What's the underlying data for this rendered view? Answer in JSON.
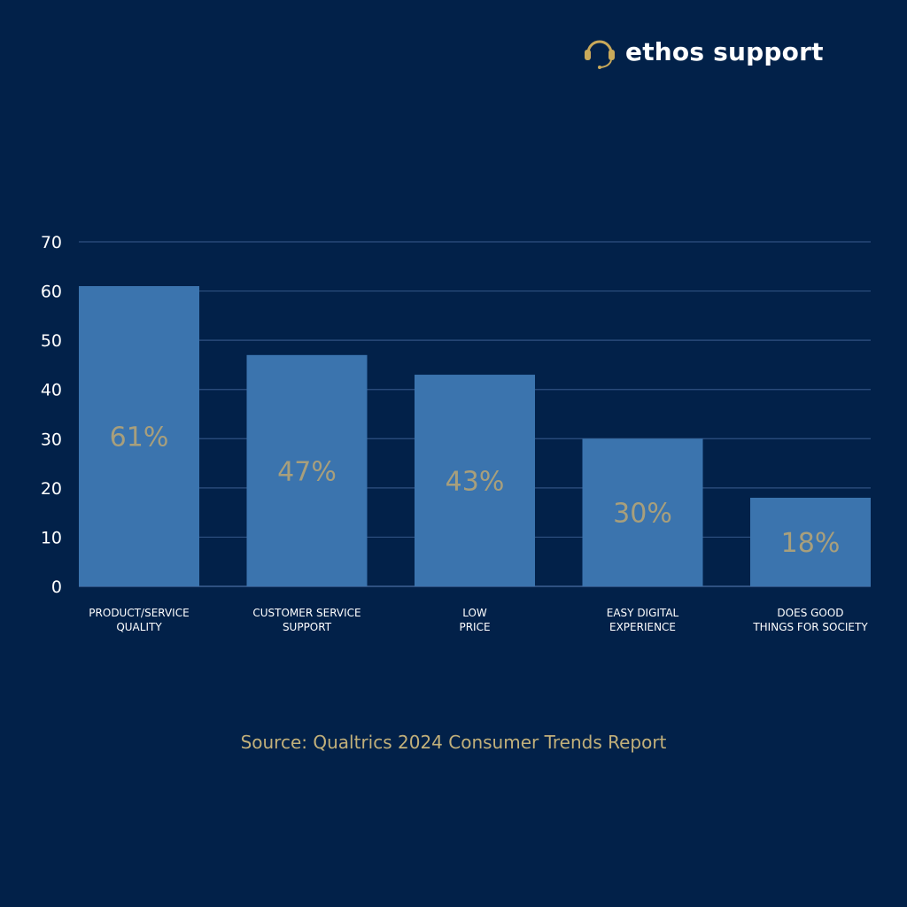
{
  "brand": {
    "name": "ethos support",
    "icon": "headset-icon",
    "accent": "#c9a95a"
  },
  "source": "Source: Qualtrics 2024 Consumer Trends Report",
  "colors": {
    "background": "#022149",
    "bar": "#3b74ae",
    "value_label": "#a89f7c",
    "grid": "#2f5181",
    "axis_text": "#ffffff"
  },
  "chart_data": {
    "type": "bar",
    "categories": [
      [
        "PRODUCT/SERVICE",
        "QUALITY"
      ],
      [
        "CUSTOMER SERVICE",
        "SUPPORT"
      ],
      [
        "LOW",
        "PRICE"
      ],
      [
        "EASY DIGITAL",
        "EXPERIENCE"
      ],
      [
        "DOES GOOD",
        "THINGS FOR SOCIETY"
      ]
    ],
    "values": [
      61,
      47,
      43,
      30,
      18
    ],
    "data_labels": [
      "61%",
      "47%",
      "43%",
      "30%",
      "18%"
    ],
    "ylim": [
      0,
      70
    ],
    "yticks": [
      0,
      10,
      20,
      30,
      40,
      50,
      60,
      70
    ],
    "grid": true,
    "title": "",
    "xlabel": "",
    "ylabel": ""
  }
}
